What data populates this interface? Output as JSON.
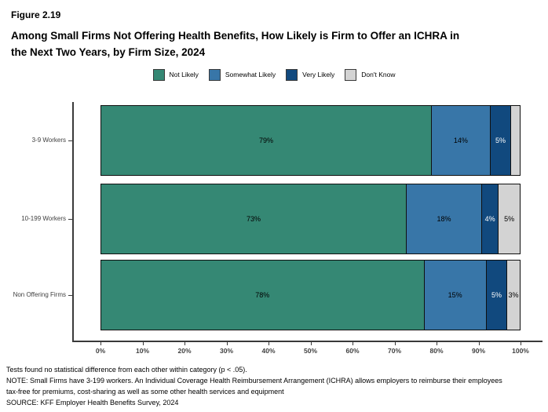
{
  "figure_label": "Figure 2.19",
  "title_lines": [
    "Among Small Firms Not Offering Health Benefits, How Likely is Firm to Offer an ICHRA in",
    "the Next Two Years, by Firm Size, 2024"
  ],
  "footnotes": [
    "Tests found no statistical difference from each other within category (p < .05).",
    "NOTE: Small Firms have 3-199 workers. An Individual Coverage Health Reimbursement Arrangement (ICHRA) allows employers to reimburse their employees",
    "tax-free for premiums, cost-sharing as well as some other health services and equipment",
    "SOURCE: KFF Employer Health Benefits Survey, 2024"
  ],
  "colors": {
    "not_likely": "#358874",
    "somewhat_likely": "#3876A8",
    "very_likely": "#11497E",
    "dont_know": "#D3D3D3",
    "axis": "#3a3a3a"
  },
  "chart_data": {
    "type": "bar",
    "orientation": "horizontal",
    "stacked": true,
    "title": "Among Small Firms Not Offering Health Benefits, How Likely is Firm to Offer an ICHRA in the Next Two Years, by Firm Size, 2024",
    "categories": [
      "3-9 Workers",
      "10-199 Workers",
      "Non Offering Firms"
    ],
    "series": [
      {
        "name": "Not Likely",
        "color": "#358874",
        "label_color": "#000000",
        "values": [
          79,
          73,
          78
        ],
        "labels": [
          "79%",
          "73%",
          "78%"
        ]
      },
      {
        "name": "Somewhat Likely",
        "color": "#3876A8",
        "label_color": "#000000",
        "values": [
          14,
          18,
          15
        ],
        "labels": [
          "14%",
          "18%",
          "15%"
        ]
      },
      {
        "name": "Very Likely",
        "color": "#11497E",
        "label_color": "#FFFFFF",
        "values": [
          5,
          4,
          5
        ],
        "labels": [
          "5%",
          "4%",
          "5%"
        ]
      },
      {
        "name": "Don't Know",
        "color": "#D3D3D3",
        "label_color": "#000000",
        "values": [
          2,
          5,
          3
        ],
        "labels": [
          "",
          "5%",
          "3%"
        ]
      }
    ],
    "x_ticks": [
      "0%",
      "10%",
      "20%",
      "30%",
      "40%",
      "50%",
      "60%",
      "70%",
      "80%",
      "90%",
      "100%"
    ],
    "xlabel": "",
    "ylabel": "",
    "xlim": [
      0,
      100
    ],
    "grid": false,
    "legend_position": "top"
  }
}
